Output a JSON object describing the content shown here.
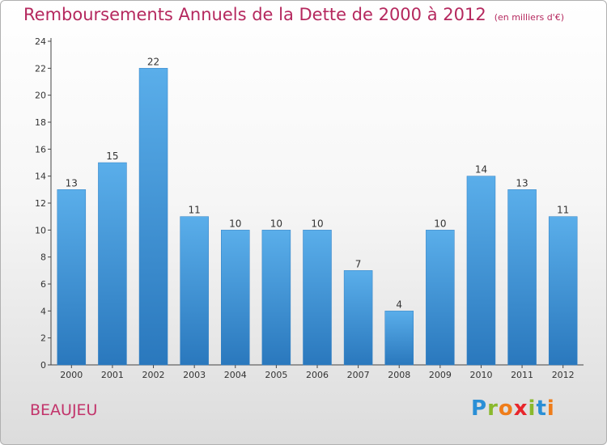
{
  "title": "Remboursements Annuels de la Dette de 2000 à 2012",
  "subtitle": "(en milliers d'€)",
  "town": "BEAUJEU",
  "logo": {
    "text": "Proxiti",
    "letters": [
      {
        "ch": "P",
        "color": "#2a8fd6"
      },
      {
        "ch": "r",
        "color": "#8ab92d"
      },
      {
        "ch": "o",
        "color": "#ef7d1a"
      },
      {
        "ch": "x",
        "color": "#e8262c"
      },
      {
        "ch": "i",
        "color": "#8ab92d"
      },
      {
        "ch": "t",
        "color": "#2a8fd6"
      },
      {
        "ch": "i",
        "color": "#ef7d1a"
      }
    ]
  },
  "chart_data": {
    "type": "bar",
    "categories": [
      "2000",
      "2001",
      "2002",
      "2003",
      "2004",
      "2005",
      "2006",
      "2007",
      "2008",
      "2009",
      "2010",
      "2011",
      "2012"
    ],
    "values": [
      13,
      15,
      22,
      11,
      10,
      10,
      10,
      7,
      4,
      10,
      14,
      13,
      11
    ],
    "ylim": [
      0,
      24
    ],
    "yticks": [
      0,
      2,
      4,
      6,
      8,
      10,
      12,
      14,
      16,
      18,
      20,
      22,
      24
    ],
    "grid": false,
    "bar_color_top": "#5aaeea",
    "bar_color_bottom": "#2a78bd"
  }
}
